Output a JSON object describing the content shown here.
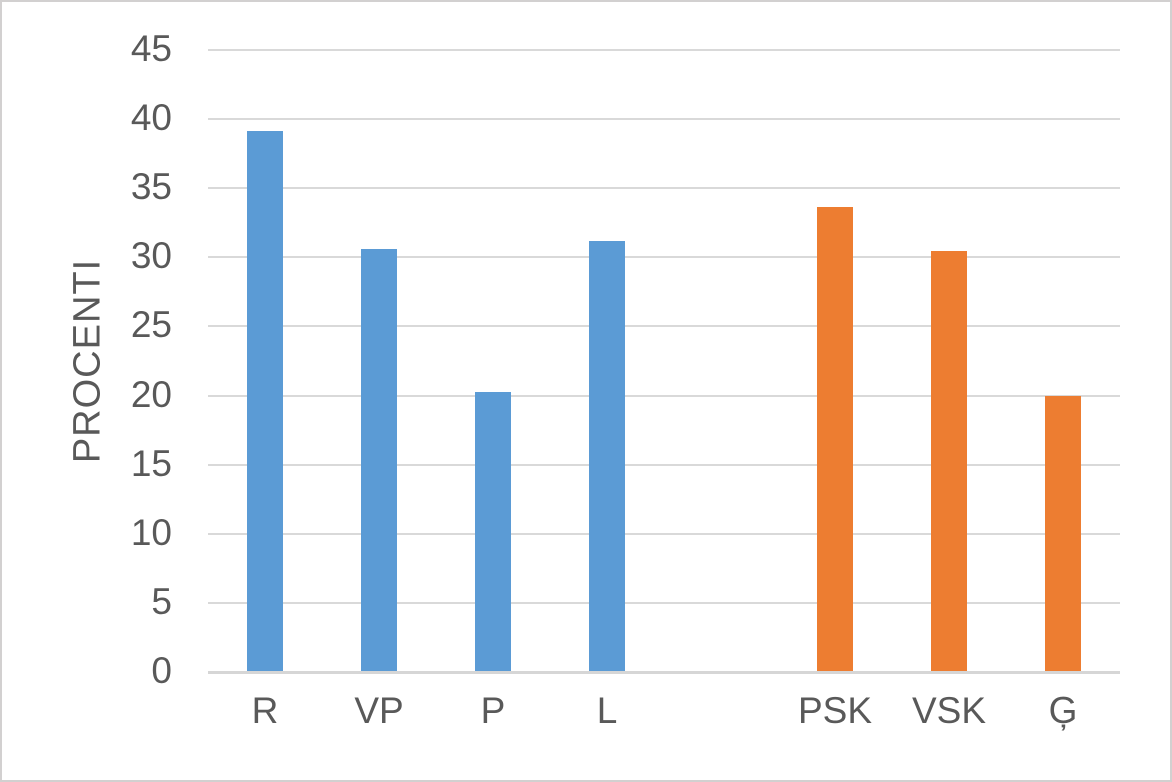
{
  "window": {
    "background_color": "#FFFFFF",
    "border_color": "#D2D0D0"
  },
  "chart_data": {
    "type": "bar",
    "title": "",
    "xlabel": "",
    "ylabel": "PROCENTI",
    "categories": [
      "R",
      "VP",
      "P",
      "L",
      "",
      "PSK",
      "VSK",
      "Ģ"
    ],
    "values": [
      39.1,
      30.5,
      20.2,
      31.1,
      null,
      33.6,
      30.4,
      19.9
    ],
    "bar_colors": [
      "#5B9BD5",
      "#5B9BD5",
      "#5B9BD5",
      "#5B9BD5",
      null,
      "#ED7D31",
      "#ED7D31",
      "#ED7D31"
    ],
    "series_colors": {
      "blue_group": "#5B9BD5",
      "orange_group": "#ED7D31"
    },
    "ylim": [
      0,
      45
    ],
    "yticks": [
      0,
      5,
      10,
      15,
      20,
      25,
      30,
      35,
      40,
      45
    ],
    "grid": true,
    "gridline_color": "#D9D9D9",
    "axis_line_color": "#D6D6D6",
    "text_color": "#595959",
    "legend_position": "none"
  }
}
